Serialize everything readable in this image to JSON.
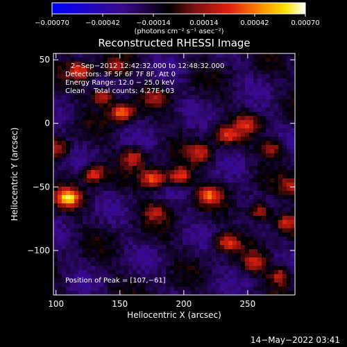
{
  "chart_data": {
    "type": "heatmap",
    "title": "Reconstructed RHESSI Image",
    "xlabel": "Heliocentric X (arcsec)",
    "ylabel": "Heliocentric Y (arcsec)",
    "xlim": [
      98,
      287
    ],
    "ylim": [
      -135,
      55
    ],
    "x_ticks": [
      100,
      150,
      200,
      250
    ],
    "x_tick_labels": [
      "100",
      "150",
      "200",
      "250"
    ],
    "y_ticks": [
      50,
      0,
      -50,
      -100
    ],
    "y_tick_labels": [
      "50",
      "0",
      "−50",
      "−100"
    ],
    "colorbar": {
      "range": [
        -0.0007,
        0.0007
      ],
      "ticks": [
        -0.0007,
        -0.00042,
        -0.00014,
        0.00014,
        0.00042,
        0.0007
      ],
      "tick_labels": [
        "−0.00070",
        "−0.00042",
        "−0.00014",
        "0.00014",
        "0.00042",
        "0.00070"
      ],
      "unit_label": "(photons cm⁻² s⁻¹ asec⁻²)",
      "colors": [
        "#0000ff",
        "#3a0a8a",
        "#000000",
        "#7a1010",
        "#e02010",
        "#ff8800",
        "#ffe000",
        "#ffffff"
      ]
    },
    "annotations": [
      "2−Sep−2012 12:42:32.000 to 12:48:32.000",
      "Detectors: 3F 5F 6F 7F 8F, Att 0",
      "Energy Range: 12.0 − 25.0 keV",
      "Clean    Total counts: 4.27E+03",
      "Position of Peak = [107,−61]"
    ],
    "peak": {
      "x": 107,
      "y": -61
    },
    "sources": [
      {
        "x": 108,
        "y": -57,
        "value": 0.0007
      },
      {
        "x": 128,
        "y": -38,
        "value": 0.0005
      },
      {
        "x": 150,
        "y": 10,
        "value": 0.0006
      },
      {
        "x": 135,
        "y": 23,
        "value": 0.00045
      },
      {
        "x": 175,
        "y": -42,
        "value": 0.0006
      },
      {
        "x": 195,
        "y": -40,
        "value": 0.00055
      },
      {
        "x": 218,
        "y": -55,
        "value": 0.0005
      },
      {
        "x": 212,
        "y": -22,
        "value": 0.0004
      },
      {
        "x": 232,
        "y": -8,
        "value": 0.00045
      },
      {
        "x": 248,
        "y": 1,
        "value": 0.00035
      },
      {
        "x": 268,
        "y": -18,
        "value": 0.0004
      },
      {
        "x": 258,
        "y": -68,
        "value": 0.00045
      },
      {
        "x": 278,
        "y": -77,
        "value": 0.0004
      },
      {
        "x": 118,
        "y": 43,
        "value": 0.00045
      },
      {
        "x": 145,
        "y": 45,
        "value": 0.0003
      },
      {
        "x": 100,
        "y": -18,
        "value": 0.00035
      },
      {
        "x": 160,
        "y": -25,
        "value": 0.0004
      },
      {
        "x": 232,
        "y": -92,
        "value": 0.00045
      },
      {
        "x": 254,
        "y": -108,
        "value": 0.00035
      },
      {
        "x": 274,
        "y": -118,
        "value": 0.0004
      },
      {
        "x": 176,
        "y": -68,
        "value": 0.0003
      },
      {
        "x": 283,
        "y": -48,
        "value": 0.0003
      },
      {
        "x": 176,
        "y": 22,
        "value": 0.0002
      }
    ],
    "grid": false
  },
  "footer": {
    "date": "14−May−2022 03:41"
  }
}
